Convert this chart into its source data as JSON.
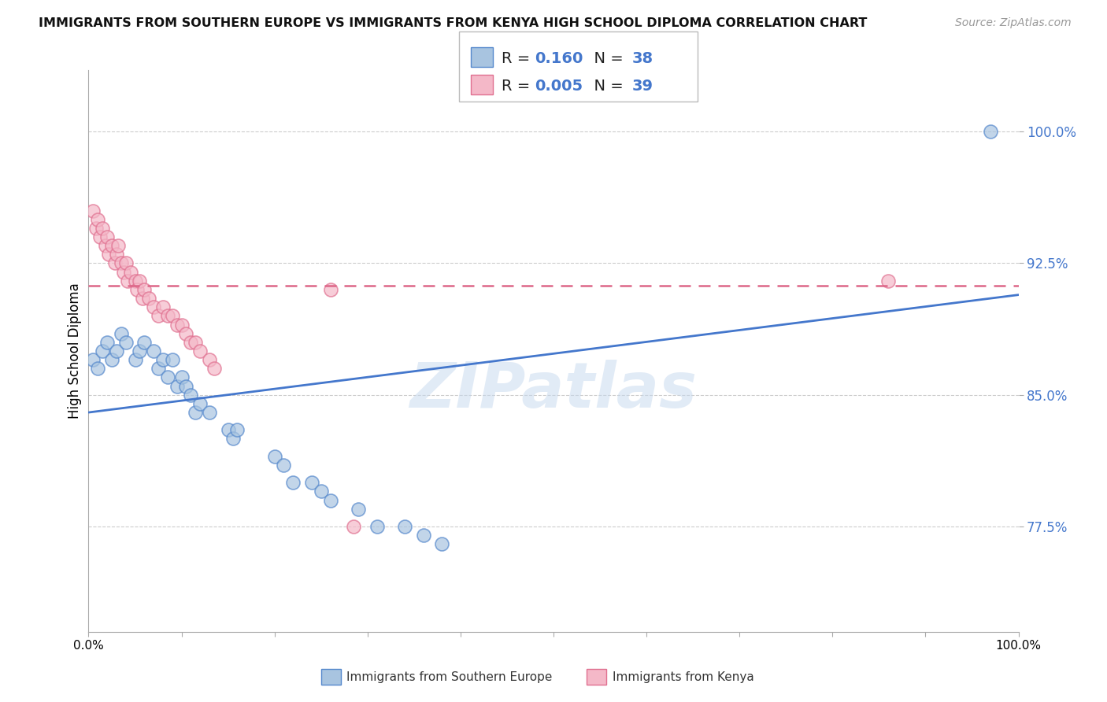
{
  "title": "IMMIGRANTS FROM SOUTHERN EUROPE VS IMMIGRANTS FROM KENYA HIGH SCHOOL DIPLOMA CORRELATION CHART",
  "source": "Source: ZipAtlas.com",
  "ylabel": "High School Diploma",
  "legend_label1": "Immigrants from Southern Europe",
  "legend_label2": "Immigrants from Kenya",
  "y_tick_labels": [
    "77.5%",
    "85.0%",
    "92.5%",
    "100.0%"
  ],
  "y_tick_values": [
    0.775,
    0.85,
    0.925,
    1.0
  ],
  "xlim": [
    0.0,
    1.0
  ],
  "ylim": [
    0.715,
    1.035
  ],
  "color_blue_fill": "#A8C4E0",
  "color_blue_edge": "#5588CC",
  "color_pink_fill": "#F4B8C8",
  "color_pink_edge": "#E07090",
  "color_blue_line": "#4477CC",
  "color_pink_line": "#DD6688",
  "color_text_blue": "#4477CC",
  "watermark_color": "#C5D8EE",
  "blue_R": "0.160",
  "blue_N": "38",
  "pink_R": "0.005",
  "pink_N": "39",
  "blue_scatter_x": [
    0.005,
    0.01,
    0.015,
    0.02,
    0.025,
    0.03,
    0.035,
    0.04,
    0.05,
    0.055,
    0.06,
    0.07,
    0.075,
    0.08,
    0.085,
    0.09,
    0.095,
    0.1,
    0.105,
    0.11,
    0.115,
    0.12,
    0.13,
    0.15,
    0.155,
    0.16,
    0.2,
    0.21,
    0.22,
    0.24,
    0.25,
    0.26,
    0.29,
    0.31,
    0.34,
    0.36,
    0.38,
    0.97
  ],
  "blue_scatter_y": [
    0.87,
    0.865,
    0.875,
    0.88,
    0.87,
    0.875,
    0.885,
    0.88,
    0.87,
    0.875,
    0.88,
    0.875,
    0.865,
    0.87,
    0.86,
    0.87,
    0.855,
    0.86,
    0.855,
    0.85,
    0.84,
    0.845,
    0.84,
    0.83,
    0.825,
    0.83,
    0.815,
    0.81,
    0.8,
    0.8,
    0.795,
    0.79,
    0.785,
    0.775,
    0.775,
    0.77,
    0.765,
    1.0
  ],
  "pink_scatter_x": [
    0.005,
    0.008,
    0.01,
    0.012,
    0.015,
    0.018,
    0.02,
    0.022,
    0.025,
    0.028,
    0.03,
    0.032,
    0.035,
    0.038,
    0.04,
    0.042,
    0.045,
    0.05,
    0.052,
    0.055,
    0.058,
    0.06,
    0.065,
    0.07,
    0.075,
    0.08,
    0.085,
    0.09,
    0.095,
    0.1,
    0.105,
    0.11,
    0.115,
    0.12,
    0.13,
    0.135,
    0.26,
    0.285,
    0.86
  ],
  "pink_scatter_y": [
    0.955,
    0.945,
    0.95,
    0.94,
    0.945,
    0.935,
    0.94,
    0.93,
    0.935,
    0.925,
    0.93,
    0.935,
    0.925,
    0.92,
    0.925,
    0.915,
    0.92,
    0.915,
    0.91,
    0.915,
    0.905,
    0.91,
    0.905,
    0.9,
    0.895,
    0.9,
    0.895,
    0.895,
    0.89,
    0.89,
    0.885,
    0.88,
    0.88,
    0.875,
    0.87,
    0.865,
    0.91,
    0.775,
    0.915
  ],
  "blue_line_x0": 0.0,
  "blue_line_x1": 1.0,
  "blue_line_y0": 0.84,
  "blue_line_y1": 0.907,
  "pink_line_x0": 0.0,
  "pink_line_x1": 1.0,
  "pink_line_y0": 0.912,
  "pink_line_y1": 0.912,
  "x_tick_positions": [
    0.0,
    0.1,
    0.2,
    0.3,
    0.4,
    0.5,
    0.6,
    0.7,
    0.8,
    0.9,
    1.0
  ]
}
